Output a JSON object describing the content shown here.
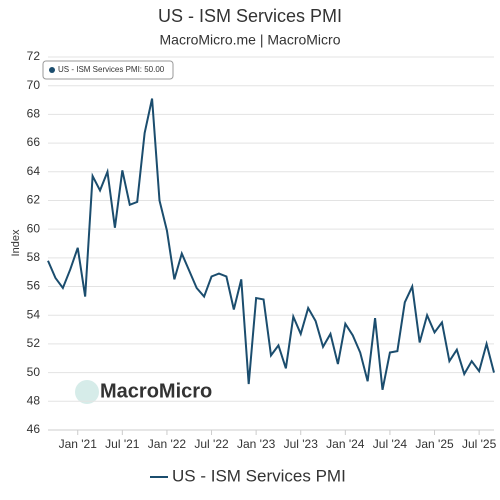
{
  "chart_data": {
    "type": "line",
    "title": "US - ISM Services PMI",
    "subtitle": "MacroMicro.me | MacroMicro",
    "y_label": "Index",
    "info_box": "US - ISM Services PMI: 50.00",
    "watermark": "MacroMicro",
    "x": [
      "2020-09",
      "2020-10",
      "2020-11",
      "2020-12",
      "2021-01",
      "2021-02",
      "2021-03",
      "2021-04",
      "2021-05",
      "2021-06",
      "2021-07",
      "2021-08",
      "2021-09",
      "2021-10",
      "2021-11",
      "2021-12",
      "2022-01",
      "2022-02",
      "2022-03",
      "2022-04",
      "2022-05",
      "2022-06",
      "2022-07",
      "2022-08",
      "2022-09",
      "2022-10",
      "2022-11",
      "2022-12",
      "2023-01",
      "2023-02",
      "2023-03",
      "2023-04",
      "2023-05",
      "2023-06",
      "2023-07",
      "2023-08",
      "2023-09",
      "2023-10",
      "2023-11",
      "2023-12",
      "2024-01",
      "2024-02",
      "2024-03",
      "2024-04",
      "2024-05",
      "2024-06",
      "2024-07",
      "2024-08",
      "2024-09",
      "2024-10",
      "2024-11",
      "2024-12",
      "2025-01",
      "2025-02",
      "2025-03",
      "2025-04",
      "2025-05",
      "2025-06",
      "2025-07",
      "2025-08",
      "2025-09"
    ],
    "series": [
      {
        "name": "US - ISM Services PMI",
        "color": "#1b4d6e",
        "values": [
          57.8,
          56.6,
          55.9,
          57.2,
          58.7,
          55.3,
          63.7,
          62.7,
          64.0,
          60.1,
          64.1,
          61.7,
          61.9,
          66.7,
          69.1,
          62.0,
          59.9,
          56.5,
          58.3,
          57.1,
          55.9,
          55.3,
          56.7,
          56.9,
          56.7,
          54.4,
          56.5,
          49.2,
          55.2,
          55.1,
          51.2,
          51.9,
          50.3,
          53.9,
          52.7,
          54.5,
          53.6,
          51.8,
          52.7,
          50.6,
          53.4,
          52.6,
          51.4,
          49.4,
          53.8,
          48.8,
          51.4,
          51.5,
          54.9,
          56.0,
          52.1,
          54.0,
          52.8,
          53.5,
          50.8,
          51.6,
          49.9,
          50.8,
          50.1,
          52.0,
          50.0
        ]
      }
    ],
    "xlim": [
      "2020-09",
      "2025-09"
    ],
    "xticks": [
      {
        "value": "2021-01",
        "label": "Jan '21"
      },
      {
        "value": "2021-07",
        "label": "Jul '21"
      },
      {
        "value": "2022-01",
        "label": "Jan '22"
      },
      {
        "value": "2022-07",
        "label": "Jul '22"
      },
      {
        "value": "2023-01",
        "label": "Jan '23"
      },
      {
        "value": "2023-07",
        "label": "Jul '23"
      },
      {
        "value": "2024-01",
        "label": "Jan '24"
      },
      {
        "value": "2024-07",
        "label": "Jul '24"
      },
      {
        "value": "2025-01",
        "label": "Jan '25"
      },
      {
        "value": "2025-07",
        "label": "Jul '25"
      }
    ],
    "ylim": [
      46,
      72
    ],
    "yticks": [
      46,
      48,
      50,
      52,
      54,
      56,
      58,
      60,
      62,
      64,
      66,
      68,
      70,
      72
    ],
    "grid": true
  }
}
